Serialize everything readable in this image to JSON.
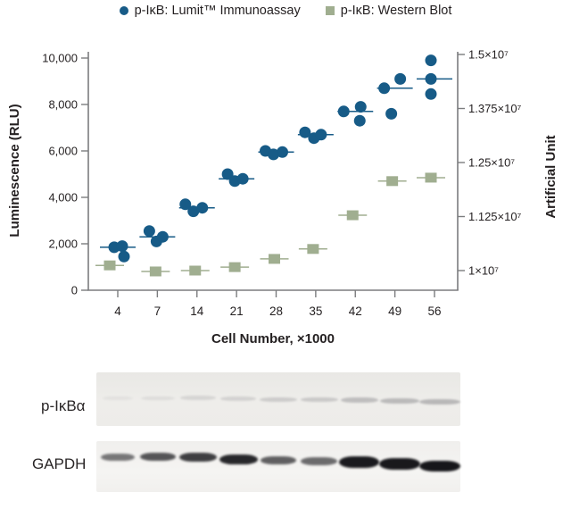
{
  "legend": {
    "items": [
      {
        "label": "p-IκB: Lumit™ Immunoassay",
        "marker": "circle",
        "color": "#175b87"
      },
      {
        "label": "p-IκB: Western Blot",
        "marker": "square",
        "color": "#a0ae90"
      }
    ]
  },
  "chart_data": {
    "type": "scatter",
    "title": "",
    "xlabel": "Cell Number, ×1000",
    "ylabel_left": "Luminescence (RLU)",
    "ylabel_right": "Artificial Unit",
    "categories": [
      4,
      7,
      14,
      21,
      28,
      35,
      42,
      49,
      56
    ],
    "x_tick_labels": [
      "4",
      "7",
      "14",
      "21",
      "28",
      "35",
      "42",
      "49",
      "56"
    ],
    "left_axis": {
      "range": [
        0,
        10000
      ],
      "ticks": [
        {
          "v": 0,
          "label": "0"
        },
        {
          "v": 2000,
          "label": "2,000"
        },
        {
          "v": 4000,
          "label": "4,000"
        },
        {
          "v": 6000,
          "label": "6,000"
        },
        {
          "v": 8000,
          "label": "8,000"
        },
        {
          "v": 10000,
          "label": "10,000"
        }
      ]
    },
    "right_axis": {
      "range": [
        10000000,
        15000000
      ],
      "ticks": [
        {
          "v": 10000000,
          "label": "1×10⁷"
        },
        {
          "v": 11250000,
          "label": "1.125×10⁷"
        },
        {
          "v": 12500000,
          "label": "1.25×10⁷"
        },
        {
          "v": 13750000,
          "label": "1.375×10⁷"
        },
        {
          "v": 15000000,
          "label": "1.5×10⁷"
        }
      ]
    },
    "series": [
      {
        "name": "p-IκB: Lumit™ Immunoassay",
        "axis": "left",
        "marker": "circle",
        "color": "#175b87",
        "replicates": [
          [
            1850,
            1900,
            1450
          ],
          [
            2550,
            2100,
            2300
          ],
          [
            3700,
            3400,
            3550
          ],
          [
            5000,
            4700,
            4800
          ],
          [
            6000,
            5850,
            5950
          ],
          [
            6800,
            6550,
            6700
          ],
          [
            7700,
            7900,
            7300
          ],
          [
            8700,
            9100,
            7600
          ],
          [
            9900,
            9100,
            8450
          ]
        ]
      },
      {
        "name": "p-IκB: Western Blot",
        "axis": "right",
        "marker": "square",
        "color": "#a0ae90",
        "values": [
          10120000,
          9980000,
          10000000,
          10080000,
          10270000,
          10500000,
          11280000,
          12070000,
          12150000
        ]
      }
    ],
    "layout": {
      "grid": false,
      "legend_position": "top",
      "axis_color": "#7b7c7e",
      "blue_dx": [
        [
          -4,
          5,
          7
        ],
        [
          -9,
          -1,
          6
        ],
        [
          -13,
          -4,
          6
        ],
        [
          -10,
          -2,
          7
        ],
        [
          -12,
          -3,
          7
        ],
        [
          -12,
          -2,
          6
        ],
        [
          -13,
          6,
          5
        ],
        [
          -12,
          6,
          -4
        ],
        [
          -4,
          -4,
          -4
        ]
      ],
      "green_dx": [
        -9,
        -2,
        -2,
        -2,
        -2,
        -3,
        -3,
        -3,
        -4
      ]
    }
  },
  "blots": [
    {
      "id": "p-ikba",
      "label": "p-IκBα",
      "lanes": 9,
      "band_intensities": [
        0.07,
        0.1,
        0.15,
        0.17,
        0.21,
        0.23,
        0.3,
        0.33,
        0.35
      ],
      "layout": {
        "color": "#55555c",
        "blur": 1.1,
        "base_y": 26,
        "y_offsets": [
          1,
          1,
          0,
          1,
          2,
          2,
          2,
          3,
          4
        ],
        "heights": [
          4,
          4,
          5,
          5,
          5,
          5,
          6,
          6,
          6
        ],
        "widths": [
          34,
          38,
          40,
          40,
          42,
          42,
          42,
          44,
          46
        ]
      }
    },
    {
      "id": "gapdh",
      "label": "GAPDH",
      "lanes": 9,
      "band_intensities": [
        0.55,
        0.7,
        0.8,
        0.9,
        0.65,
        0.6,
        0.96,
        0.97,
        0.98
      ],
      "layout": {
        "color": "#121216",
        "blur": 1.2,
        "base_y": 12,
        "y_offsets": [
          2,
          1,
          1,
          3,
          5,
          6,
          5,
          7,
          10
        ],
        "heights": [
          8,
          9,
          10,
          11,
          9,
          9,
          13,
          13,
          12
        ],
        "widths": [
          38,
          40,
          42,
          43,
          40,
          41,
          45,
          46,
          46
        ]
      }
    }
  ]
}
